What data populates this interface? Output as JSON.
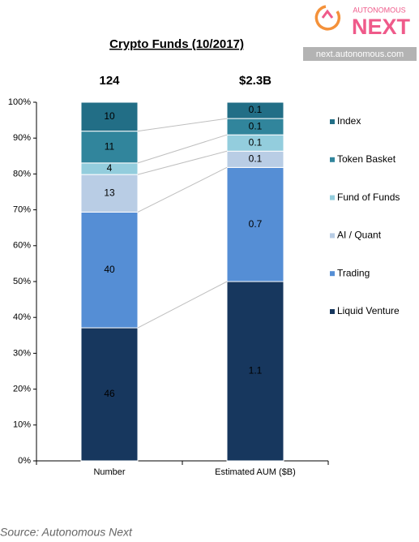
{
  "chart_data": {
    "type": "bar",
    "stacked": "percent",
    "title": "Crypto Funds (10/2017)",
    "categories": [
      "Number",
      "Estimated AUM ($B)"
    ],
    "annotations": [
      "124",
      "$2.3B"
    ],
    "series": [
      {
        "name": "Liquid Venture",
        "color": "#17375e",
        "label_color": "#ffffff",
        "values": [
          46,
          1.1
        ]
      },
      {
        "name": "Trading",
        "color": "#558ed5",
        "label_color": "#000000",
        "values": [
          40,
          0.7
        ]
      },
      {
        "name": "AI / Quant",
        "color": "#b9cde5",
        "label_color": "#000000",
        "values": [
          13,
          0.1
        ]
      },
      {
        "name": "Fund of Funds",
        "color": "#93cddd",
        "label_color": "#000000",
        "values": [
          4,
          0.1
        ]
      },
      {
        "name": "Token Basket",
        "color": "#31859c",
        "label_color": "#ffffff",
        "values": [
          11,
          0.1
        ]
      },
      {
        "name": "Index",
        "color": "#226e86",
        "label_color": "#ffffff",
        "values": [
          10,
          0.1
        ]
      }
    ],
    "ylim": [
      0,
      100
    ],
    "yticks": [
      {
        "value": 0,
        "label": "0%"
      },
      {
        "value": 10,
        "label": "10%"
      },
      {
        "value": 20,
        "label": "20%"
      },
      {
        "value": 30,
        "label": "30%"
      },
      {
        "value": 40,
        "label": "40%"
      },
      {
        "value": 50,
        "label": "50%"
      },
      {
        "value": 60,
        "label": "60%"
      },
      {
        "value": 70,
        "label": "70%"
      },
      {
        "value": 80,
        "label": "80%"
      },
      {
        "value": 90,
        "label": "90%"
      },
      {
        "value": 100,
        "label": "100%"
      }
    ],
    "legend": "right",
    "logo": {
      "small": "AUTONOMOUS",
      "big": "NEXT",
      "url": "next.autonomous.com"
    },
    "source": "Source: Autonomous Next"
  }
}
